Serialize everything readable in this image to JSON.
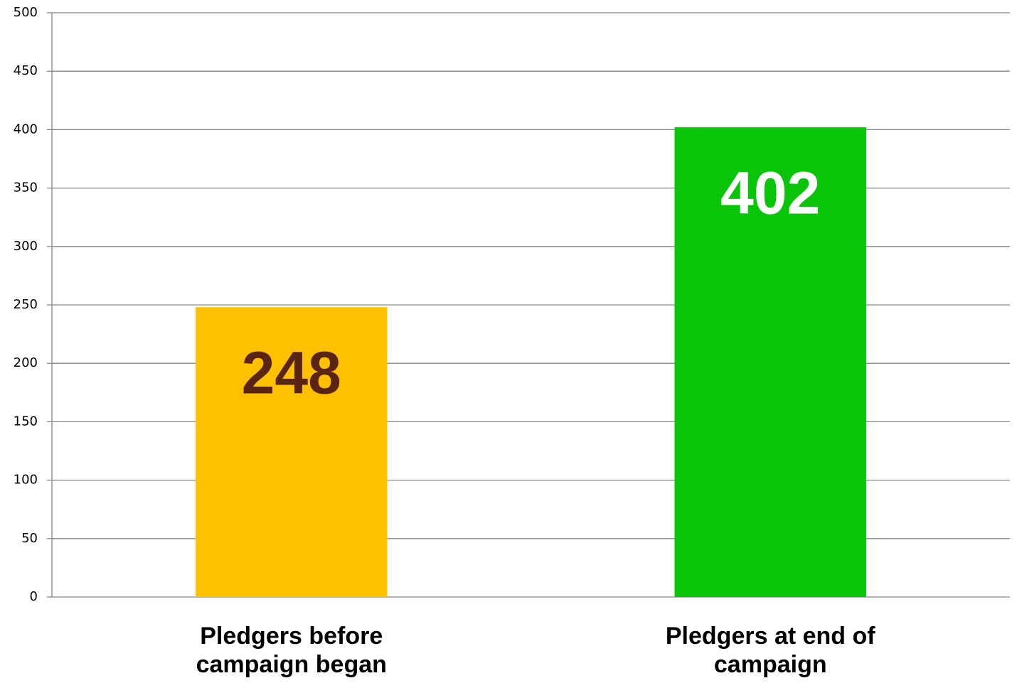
{
  "chart_data": {
    "type": "bar",
    "categories": [
      "Pledgers before campaign began",
      "Pledgers at end of campaign"
    ],
    "values": [
      248,
      402
    ],
    "colors": [
      "#ffc000",
      "#0ac40a"
    ],
    "value_label_colors": [
      "#5a2412",
      "#ffffff"
    ],
    "ylim": [
      0,
      500
    ],
    "yticks": [
      0,
      50,
      100,
      150,
      200,
      250,
      300,
      350,
      400,
      450,
      500
    ],
    "grid": true
  }
}
